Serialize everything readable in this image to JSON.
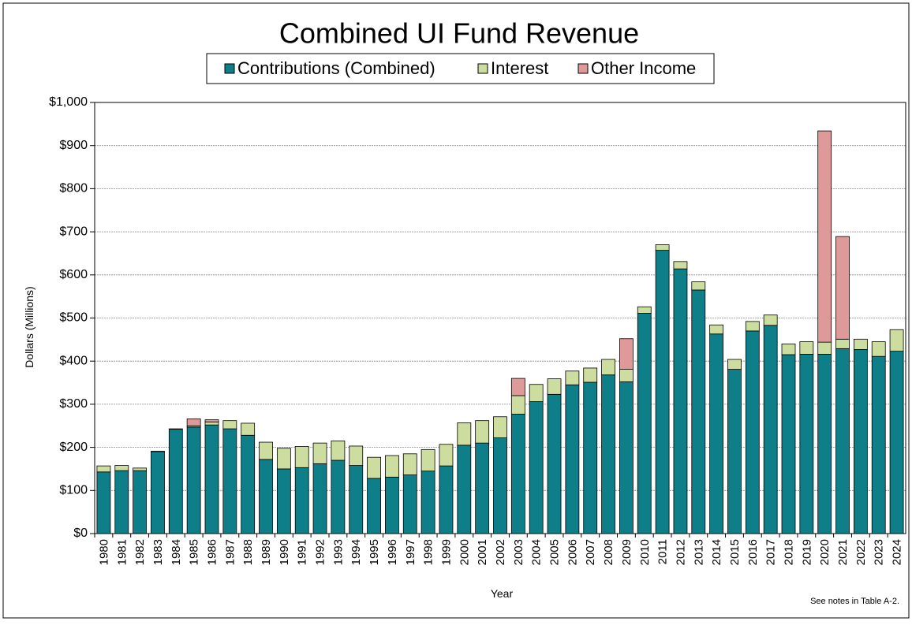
{
  "chart_data": {
    "type": "stacked-bar",
    "title": "Combined UI Fund Revenue",
    "x_label": "Year",
    "y_label": "Dollars (Millions)",
    "note": "See notes  in Table A-2.",
    "categories": [
      "1980",
      "1981",
      "1982",
      "1983",
      "1984",
      "1985",
      "1986",
      "1987",
      "1988",
      "1989",
      "1990",
      "1991",
      "1992",
      "1993",
      "1994",
      "1995",
      "1996",
      "1997",
      "1998",
      "1999",
      "2000",
      "2001",
      "2002",
      "2003",
      "2004",
      "2005",
      "2006",
      "2007",
      "2008",
      "2009",
      "2010",
      "2011",
      "2012",
      "2013",
      "2014",
      "2015",
      "2016",
      "2017",
      "2018",
      "2019",
      "2020",
      "2021",
      "2022",
      "2023",
      "2024"
    ],
    "series": [
      {
        "name": "Contributions (Combined)",
        "color": "#0e7f88",
        "values": [
          143,
          146,
          146,
          190,
          242,
          247,
          252,
          243,
          228,
          172,
          150,
          153,
          162,
          170,
          158,
          128,
          131,
          136,
          145,
          157,
          205,
          210,
          222,
          277,
          306,
          323,
          345,
          351,
          368,
          352,
          511,
          657,
          614,
          565,
          463,
          381,
          470,
          483,
          415,
          416,
          416,
          429,
          427,
          411,
          423
        ]
      },
      {
        "name": "Interest",
        "color": "#cddda0",
        "values": [
          14,
          12,
          6,
          1,
          1,
          3,
          7,
          19,
          28,
          40,
          48,
          49,
          48,
          45,
          45,
          49,
          50,
          49,
          50,
          50,
          52,
          52,
          49,
          43,
          40,
          36,
          32,
          33,
          36,
          29,
          15,
          13,
          17,
          19,
          21,
          23,
          22,
          24,
          25,
          29,
          28,
          22,
          24,
          34,
          50
        ]
      },
      {
        "name": "Other Income",
        "color": "#de9a98",
        "values": [
          0,
          0,
          0,
          0,
          0,
          16,
          5,
          0,
          0,
          0,
          0,
          0,
          0,
          0,
          0,
          0,
          0,
          0,
          0,
          0,
          0,
          0,
          0,
          40,
          0,
          0,
          0,
          0,
          0,
          71,
          0,
          0,
          0,
          0,
          0,
          0,
          0,
          0,
          0,
          0,
          490,
          238,
          0,
          0,
          0
        ]
      }
    ],
    "ylim": [
      0,
      1000
    ],
    "yticks": [
      {
        "value": 0,
        "label": "$0"
      },
      {
        "value": 100,
        "label": "$100"
      },
      {
        "value": 200,
        "label": "$200"
      },
      {
        "value": 300,
        "label": "$300"
      },
      {
        "value": 400,
        "label": "$400"
      },
      {
        "value": 500,
        "label": "$500"
      },
      {
        "value": 600,
        "label": "$600"
      },
      {
        "value": 700,
        "label": "$700"
      },
      {
        "value": 800,
        "label": "$800"
      },
      {
        "value": 900,
        "label": "$900"
      },
      {
        "value": 1000,
        "label": "$1,000"
      }
    ],
    "grid": true
  }
}
